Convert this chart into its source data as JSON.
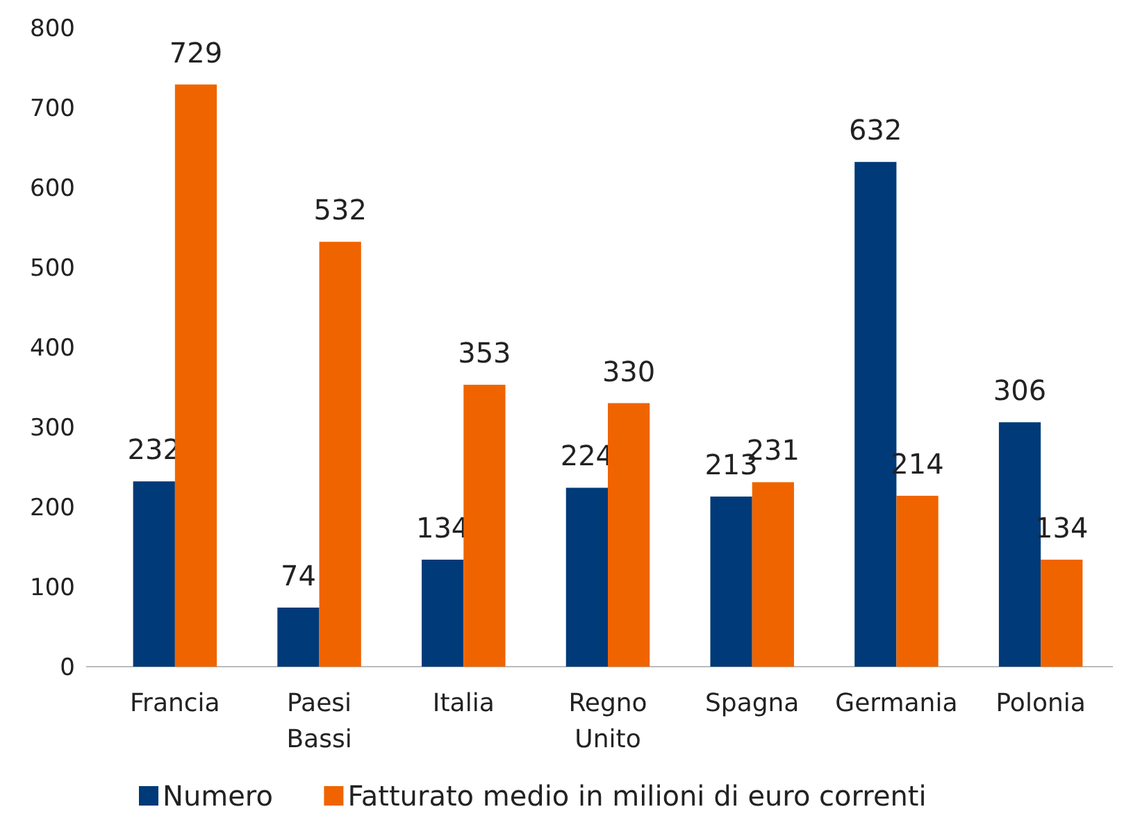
{
  "chart_data": {
    "type": "bar",
    "categories": [
      "Francia",
      "Paesi Bassi",
      "Italia",
      "Regno Unito",
      "Spagna",
      "Germania",
      "Polonia"
    ],
    "series": [
      {
        "name": "Numero",
        "color": "#003a78",
        "values": [
          232,
          74,
          134,
          224,
          213,
          632,
          306
        ]
      },
      {
        "name": "Fatturato medio in milioni di euro correnti",
        "color": "#f06400",
        "values": [
          729,
          532,
          353,
          330,
          231,
          214,
          134
        ]
      }
    ],
    "ylim": [
      0,
      800
    ],
    "yticks": [
      0,
      100,
      200,
      300,
      400,
      500,
      600,
      700,
      800
    ],
    "data_labels": true,
    "legend": "bottom",
    "grid": false
  }
}
